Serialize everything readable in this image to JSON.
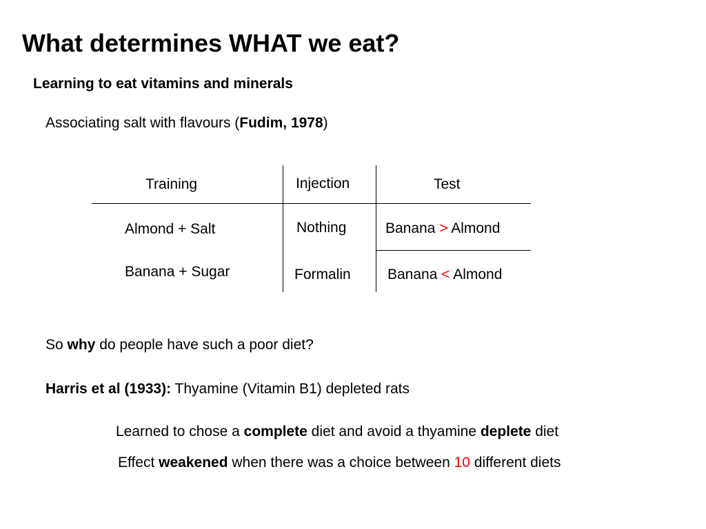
{
  "slide": {
    "title": "What determines WHAT we eat?",
    "subtitle": "Learning to eat vitamins and minerals",
    "assoc": {
      "prefix": "Associating salt with flavours (",
      "citation": "Fudim, 1978",
      "suffix": ")"
    },
    "table": {
      "headers": {
        "training": "Training",
        "injection": "Injection",
        "test": "Test"
      },
      "rows": [
        {
          "training": "Almond + Salt",
          "injection": "Nothing",
          "test_left": "Banana",
          "test_op": ">",
          "test_right": "Almond"
        },
        {
          "training": "Banana + Sugar",
          "injection": "Formalin",
          "test_left": "Banana",
          "test_op": "<",
          "test_right": "Almond"
        }
      ]
    },
    "why": {
      "prefix": "So ",
      "bold": "why",
      "suffix": " do people have such a poor diet?"
    },
    "harris": {
      "bold": "Harris et al (1933):",
      "rest": " Thyamine (Vitamin B1) depleted rats"
    },
    "learned": {
      "part1": "Learned to chose a ",
      "bold1": "complete",
      "part2": " diet and avoid a thyamine ",
      "bold2": "deplete",
      "part3": " diet"
    },
    "effect": {
      "part1": "Effect ",
      "bold1": "weakened",
      "part2": " when there was a choice between ",
      "number": "10",
      "part3": " different diets"
    },
    "colors": {
      "highlight": "#ff0000"
    }
  }
}
